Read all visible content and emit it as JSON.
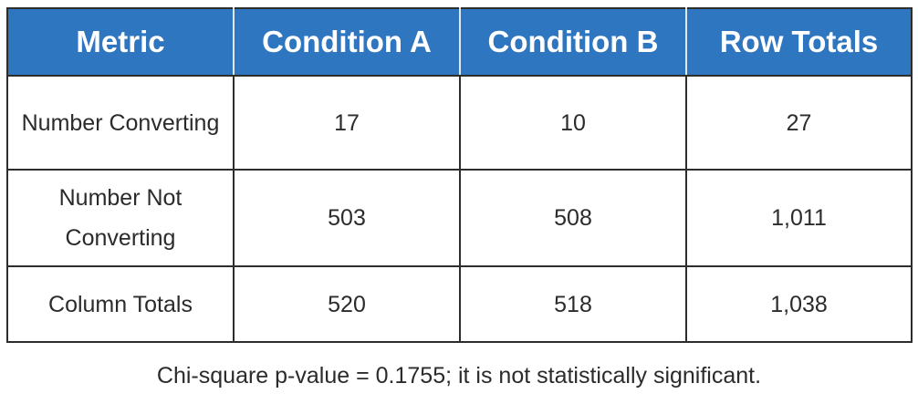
{
  "chart_data": {
    "type": "table",
    "columns": [
      "Metric",
      "Condition A",
      "Condition B",
      "Row Totals"
    ],
    "rows": [
      {
        "metric": "Number Converting",
        "condition_a": "17",
        "condition_b": "10",
        "row_total": "27"
      },
      {
        "metric": "Number Not Converting",
        "condition_a": "503",
        "condition_b": "508",
        "row_total": "1,011"
      },
      {
        "metric": "Column Totals",
        "condition_a": "520",
        "condition_b": "518",
        "row_total": "1,038"
      }
    ],
    "annotation": "Chi-square p-value = 0.1755; it is not statistically significant."
  },
  "colors": {
    "header_background": "#2f76c0",
    "header_text": "#ffffff",
    "border": "#2d2d2d",
    "body_text": "#2b2b2b"
  }
}
